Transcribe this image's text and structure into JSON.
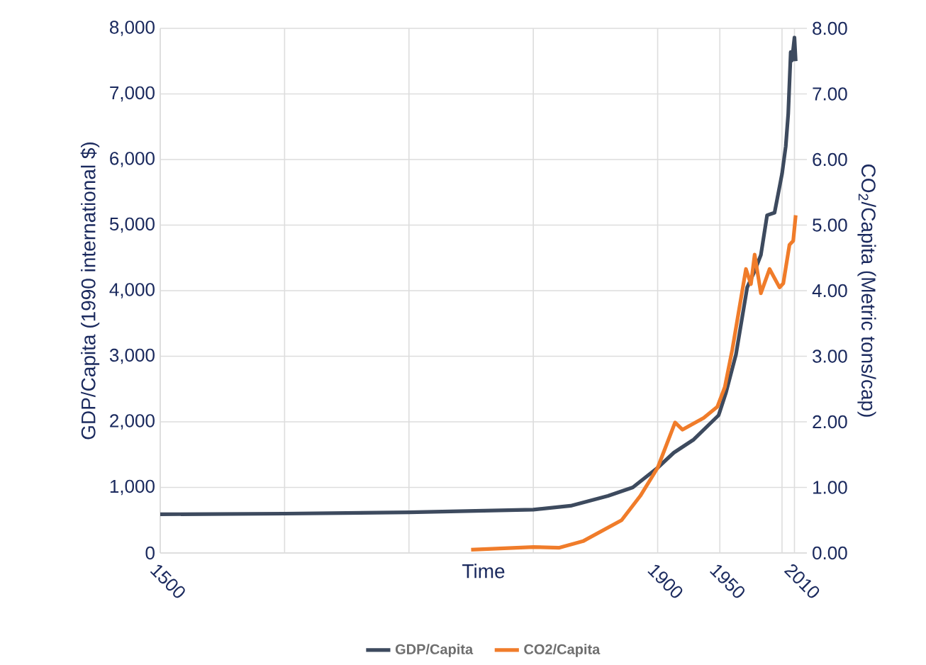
{
  "chart_data": {
    "type": "line",
    "xlabel": "Time",
    "ylabel": "GDP/Capita (1990 international $)",
    "y2label": "CO$_{2}$/Capita (Metric tons/cap)",
    "xlim": [
      1500,
      2020
    ],
    "xticks": [
      1500,
      {
        "value": 1600,
        "label": null
      },
      {
        "value": 1700,
        "label": null
      },
      {
        "value": 1800,
        "label": null
      },
      1900,
      1950,
      {
        "value": 2000,
        "label": null
      },
      2010
    ],
    "ylim": [
      0,
      8000
    ],
    "yticks": [
      0,
      {
        "value": 1000,
        "label": "1,000"
      },
      {
        "value": 2000,
        "label": "2,000"
      },
      {
        "value": 3000,
        "label": "3,000"
      },
      {
        "value": 4000,
        "label": "4,000"
      },
      {
        "value": 5000,
        "label": "5,000"
      },
      {
        "value": 6000,
        "label": "6,000"
      },
      {
        "value": 7000,
        "label": "7,000"
      },
      {
        "value": 8000,
        "label": "8,000"
      }
    ],
    "y2lim": [
      0,
      8
    ],
    "y2ticks": [
      {
        "value": 0,
        "label": "0.00"
      },
      {
        "value": 1,
        "label": "1.00"
      },
      {
        "value": 2,
        "label": "2.00"
      },
      {
        "value": 3,
        "label": "3.00"
      },
      {
        "value": 4,
        "label": "4.00"
      },
      {
        "value": 5,
        "label": "5.00"
      },
      {
        "value": 6,
        "label": "6.00"
      },
      {
        "value": 7,
        "label": "7.00"
      },
      {
        "value": 8,
        "label": "8.00"
      }
    ],
    "grid": true,
    "legend": "bottom",
    "marker": "none",
    "line_style": "solid",
    "series": [
      {
        "name": "GDP/Capita",
        "color": "#3d4a5e",
        "x": [
          1500,
          1600,
          1700,
          1750,
          1800,
          1830,
          1860,
          1880,
          1900,
          1913,
          1929,
          1949,
          1955,
          1963,
          1972,
          1978,
          1983,
          1988,
          1994,
          2000,
          2003,
          2005,
          2007,
          2008,
          2010,
          2011
        ],
        "values": [
          590,
          600,
          620,
          640,
          660,
          720,
          870,
          1000,
          1300,
          1530,
          1730,
          2100,
          2450,
          3030,
          4050,
          4300,
          4545,
          5150,
          5190,
          5780,
          6200,
          6700,
          7640,
          7510,
          7860,
          7500
        ]
      },
      {
        "name": "CO2/Capita",
        "color": "#f07c2a",
        "axis": "y2",
        "x": [
          1750,
          1800,
          1821,
          1840,
          1871,
          1886,
          1900,
          1914,
          1920,
          1937,
          1948,
          1954,
          1960,
          1971,
          1975,
          1978,
          1983,
          1990,
          1998,
          2001,
          2006,
          2009,
          2011
        ],
        "values": [
          0.05,
          0.09,
          0.08,
          0.18,
          0.5,
          0.87,
          1.3,
          1.99,
          1.88,
          2.06,
          2.23,
          2.53,
          3.1,
          4.33,
          4.1,
          4.55,
          3.96,
          4.33,
          4.05,
          4.11,
          4.7,
          4.76,
          5.15
        ]
      }
    ]
  }
}
